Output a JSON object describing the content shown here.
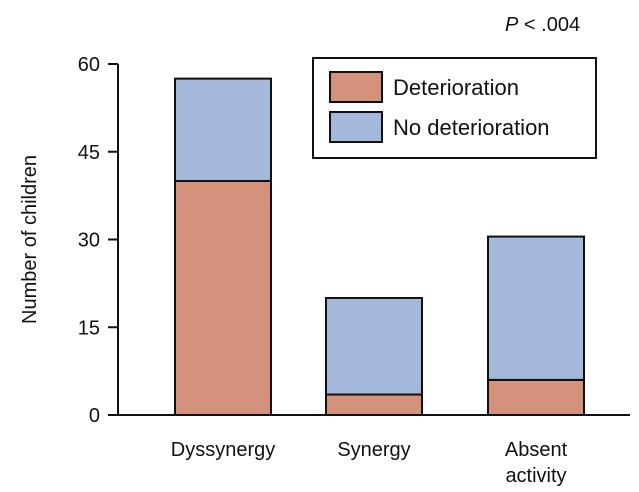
{
  "chart_data": {
    "type": "bar",
    "stacked": true,
    "annotation_italic": "P",
    "annotation_rest": " < .004",
    "ylabel": "Number of children",
    "xlabel": "",
    "ylim": [
      0,
      60
    ],
    "yticks": [
      "0",
      "15",
      "30",
      "45",
      "60"
    ],
    "categories": [
      [
        "Dyssynergy"
      ],
      [
        "Synergy"
      ],
      [
        "Absent",
        "activity"
      ]
    ],
    "legend_position": "top-right",
    "series": [
      {
        "name": "Deterioration",
        "color": "#d4917c",
        "values": [
          40,
          3.5,
          6
        ]
      },
      {
        "name": "No deterioration",
        "color": "#a3b8da",
        "values": [
          17.5,
          16.5,
          24.5
        ]
      }
    ]
  }
}
